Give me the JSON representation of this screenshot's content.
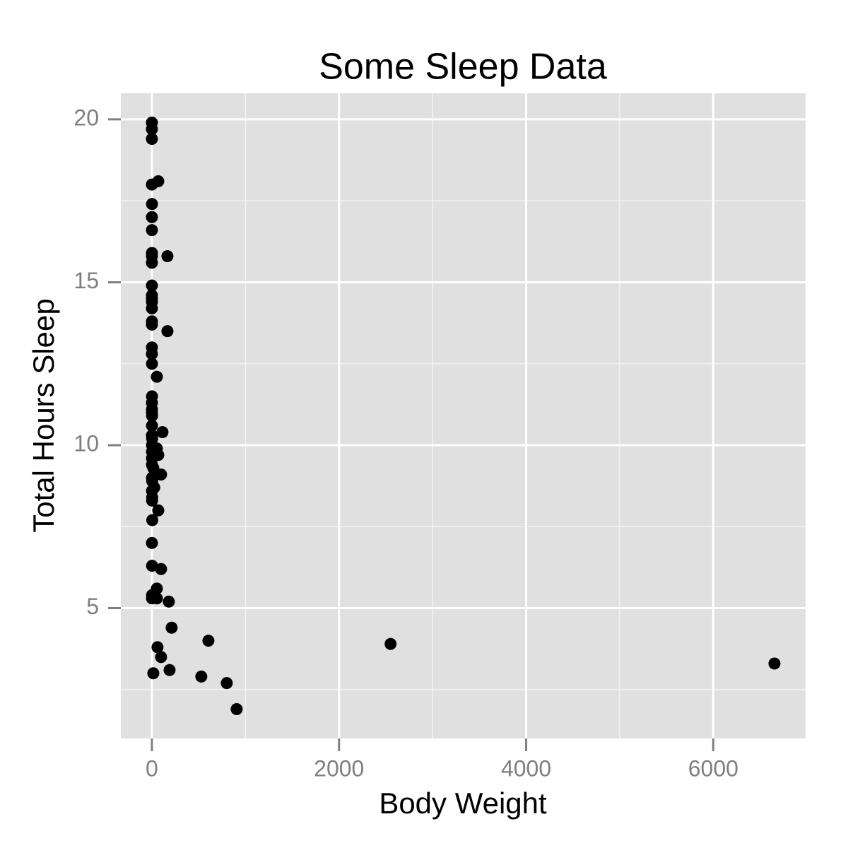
{
  "chart_data": {
    "type": "scatter",
    "title": "Some Sleep Data",
    "x_label": "Body Weight",
    "y_label": "Total Hours Sleep",
    "x": [
      0.01,
      0.02,
      0.02,
      68,
      0.02,
      1,
      0.1,
      0.2,
      0.3,
      0.3,
      0.1,
      166,
      0.5,
      0.1,
      0.3,
      0.5,
      0.1,
      0.5,
      0.2,
      166,
      0.2,
      0.3,
      0.6,
      53,
      1,
      0.5,
      1,
      0.5,
      2,
      1,
      113,
      0.5,
      3,
      1,
      53,
      1,
      68,
      0.9,
      1,
      15,
      98,
      1,
      3,
      25,
      1,
      3,
      2,
      68,
      4,
      0.4,
      2,
      98,
      53,
      2,
      0.9,
      53,
      181,
      211,
      604,
      2551,
      60,
      98,
      189,
      15,
      528,
      800,
      906,
      6654
    ],
    "values": [
      19.9,
      19.7,
      19.4,
      18.1,
      18.0,
      17.4,
      17.0,
      16.6,
      15.9,
      15.8,
      15.6,
      15.8,
      14.9,
      14.6,
      14.5,
      14.4,
      14.2,
      13.8,
      13.7,
      13.5,
      13.0,
      12.8,
      12.5,
      12.1,
      11.5,
      11.3,
      11.1,
      11.0,
      10.9,
      10.6,
      10.4,
      10.3,
      10.2,
      10.0,
      9.9,
      9.8,
      9.7,
      9.6,
      9.4,
      9.3,
      9.1,
      9.0,
      8.9,
      8.7,
      8.6,
      8.4,
      8.3,
      8.0,
      7.7,
      7.0,
      6.3,
      6.2,
      5.6,
      5.4,
      5.3,
      5.3,
      5.2,
      4.4,
      4.0,
      3.9,
      3.8,
      3.5,
      3.1,
      3.0,
      2.9,
      2.7,
      1.9,
      3.3
    ],
    "color": "#000000",
    "xlim": [
      -332,
      6987
    ],
    "xticks": [
      0,
      2000,
      4000,
      6000
    ],
    "x_minor_ticks": [
      1000,
      3000,
      5000
    ],
    "ylim": [
      1.0,
      20.8
    ],
    "yticks": [
      5,
      10,
      15,
      20
    ],
    "y_minor_ticks": [
      2.5,
      7.5,
      12.5,
      17.5
    ],
    "grid": true
  }
}
